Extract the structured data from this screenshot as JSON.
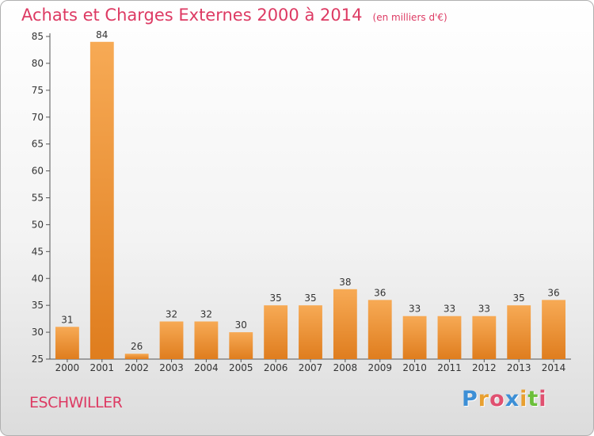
{
  "title": "Achats et Charges Externes 2000 à 2014",
  "unit_note": "(en milliers d'€)",
  "commune": "ESCHWILLER",
  "logo": {
    "text": "Proxiti",
    "letters": [
      {
        "char": "P",
        "color": "#3c8fd6"
      },
      {
        "char": "r",
        "color": "#e8a030"
      },
      {
        "char": "o",
        "color": "#e05070"
      },
      {
        "char": "x",
        "color": "#3c8fd6"
      },
      {
        "char": "i",
        "color": "#e8a030"
      },
      {
        "char": "t",
        "color": "#6bbf3a"
      },
      {
        "char": "i",
        "color": "#e05070"
      }
    ]
  },
  "colors": {
    "accent": "#dd3a63",
    "bar_light": "#f6a64e",
    "bar_dark": "#e07f20",
    "axis": "#555555",
    "tick_text": "#333333"
  },
  "chart_data": {
    "type": "bar",
    "categories": [
      "2000",
      "2001",
      "2002",
      "2003",
      "2004",
      "2005",
      "2006",
      "2007",
      "2008",
      "2009",
      "2010",
      "2011",
      "2012",
      "2013",
      "2014"
    ],
    "values": [
      31,
      84,
      26,
      32,
      32,
      30,
      35,
      35,
      38,
      36,
      33,
      33,
      33,
      35,
      36
    ],
    "data_labels": [
      "31",
      "84",
      "26",
      "32",
      "32",
      "30",
      "35",
      "35",
      "38",
      "36",
      "33",
      "33",
      "33",
      "35",
      "36"
    ],
    "title": "Achats et Charges Externes 2000 à 2014",
    "xlabel": "",
    "ylabel": "",
    "ylim": [
      25,
      85
    ],
    "yticks": [
      25,
      30,
      35,
      40,
      45,
      50,
      55,
      60,
      65,
      70,
      75,
      80,
      85
    ],
    "ytick_labels": [
      "25",
      "30",
      "35",
      "40",
      "45",
      "50",
      "55",
      "60",
      "65",
      "70",
      "75",
      "80",
      "85"
    ],
    "grid": false,
    "legend": "none"
  }
}
